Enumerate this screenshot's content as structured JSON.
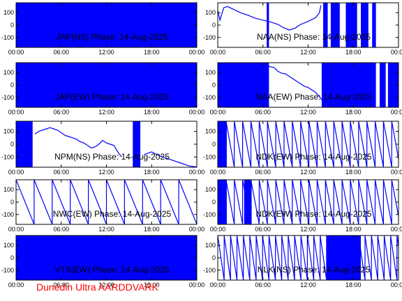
{
  "footer": {
    "label": "Dunedin Ultra AARDDVARK",
    "color": "#ff0000"
  },
  "colors": {
    "trace": "#0000ff",
    "axes": "#000000",
    "background": "#ffffff"
  },
  "chart_data": [
    {
      "type": "line",
      "title": "JAP(NS) Phase: 14-Aug-2025",
      "style": "dense",
      "ylim": [
        -180,
        180
      ],
      "yticks": [
        100,
        0,
        -100
      ],
      "xticks": [
        "00:00",
        "06:00",
        "12:00",
        "18:00",
        "00:00"
      ],
      "xlim": [
        0,
        24
      ],
      "gaps": []
    },
    {
      "type": "line",
      "title": "NAA(NS) Phase: 14-Aug-2025",
      "style": "mixed",
      "ylim": [
        -180,
        180
      ],
      "yticks": [
        100,
        0,
        -100
      ],
      "xticks": [
        "00:00",
        "06:00",
        "12:00",
        "18:00",
        "00:00"
      ],
      "xlim": [
        0,
        24
      ],
      "series": [
        {
          "x": [
            0,
            0.3,
            0.8,
            1.3,
            2,
            3,
            4,
            5,
            6,
            7,
            8,
            8.7,
            9.5,
            10,
            10.3,
            10.6,
            11,
            12,
            13,
            13.5,
            13.7
          ],
          "y": [
            120,
            40,
            140,
            150,
            130,
            100,
            80,
            55,
            40,
            25,
            5,
            -20,
            -40,
            -30,
            -25,
            -10,
            5,
            30,
            60,
            100,
            160
          ]
        }
      ],
      "dense": [
        [
          6.5,
          6.8
        ],
        [
          14,
          14.6
        ],
        [
          15,
          16.2
        ],
        [
          17,
          18.5
        ],
        [
          19,
          20
        ],
        [
          20.5,
          21
        ]
      ]
    },
    {
      "type": "line",
      "title": "JAP(EW) Phase: 14-Aug-2025",
      "style": "dense",
      "ylim": [
        -180,
        180
      ],
      "yticks": [
        100,
        0,
        -100
      ],
      "xticks": [
        "00:00",
        "06:00",
        "12:00",
        "18:00",
        "00:00"
      ],
      "xlim": [
        0,
        24
      ],
      "gaps": []
    },
    {
      "type": "line",
      "title": "NAA(EW) Phase: 14-Aug-2025",
      "style": "mixed",
      "ylim": [
        -180,
        180
      ],
      "yticks": [
        100,
        0,
        -100
      ],
      "xticks": [
        "00:00",
        "06:00",
        "12:00",
        "18:00",
        "00:00"
      ],
      "xlim": [
        0,
        24
      ],
      "series": [
        {
          "x": [
            6.8,
            7.5,
            8,
            8.5,
            9,
            9.5,
            10,
            10.5,
            11,
            11.5,
            12,
            12.5,
            13,
            13.3,
            13.6,
            13.8
          ],
          "y": [
            150,
            140,
            110,
            95,
            90,
            70,
            50,
            30,
            10,
            -10,
            -20,
            -40,
            -60,
            -80,
            -100,
            -120
          ]
        }
      ],
      "dense": [
        [
          0,
          6.8
        ],
        [
          13.8,
          21
        ],
        [
          21.5,
          22.3
        ],
        [
          22.6,
          24
        ]
      ]
    },
    {
      "type": "line",
      "title": "NPM(NS) Phase: 14-Aug-2025",
      "style": "mixed",
      "ylim": [
        -180,
        180
      ],
      "yticks": [
        100,
        0,
        -100
      ],
      "xticks": [
        "00:00",
        "06:00",
        "12:00",
        "18:00",
        "00:00"
      ],
      "xlim": [
        0,
        24
      ],
      "series": [
        {
          "x": [
            2.5,
            3,
            3.5,
            4,
            4.5,
            5,
            5.5,
            6,
            6.5,
            7,
            7.5,
            8,
            8.5,
            9,
            9.5,
            10,
            10.5,
            11,
            11.5,
            12,
            12.5,
            13,
            13.5,
            14
          ],
          "y": [
            80,
            100,
            110,
            120,
            130,
            120,
            110,
            90,
            70,
            60,
            50,
            40,
            20,
            10,
            -10,
            -30,
            -20,
            0,
            30,
            10,
            0,
            -10,
            -60,
            -100
          ]
        },
        {
          "x": [
            17,
            18,
            19,
            20,
            21,
            22,
            23,
            24
          ],
          "y": [
            -80,
            -60,
            -90,
            -110,
            -130,
            -150,
            -170,
            -178
          ]
        }
      ],
      "dense": [
        [
          0,
          2.2
        ],
        [
          15.5,
          16.5
        ]
      ]
    },
    {
      "type": "line",
      "title": "NDK(EW) Phase: 14-Aug-2025",
      "style": "sawtooth",
      "ylim": [
        -180,
        180
      ],
      "yticks": [
        100,
        0,
        -100
      ],
      "xticks": [
        "00:00",
        "06:00",
        "12:00",
        "18:00",
        "00:00"
      ],
      "xlim": [
        0,
        24
      ],
      "period_hours": 1.1,
      "dense": [
        [
          0,
          1.2
        ]
      ]
    },
    {
      "type": "line",
      "title": "NWC(EW) Phase: 14-Aug-2025",
      "style": "sawtooth",
      "ylim": [
        -180,
        180
      ],
      "yticks": [
        100,
        0,
        -100
      ],
      "xticks": [
        "00:00",
        "06:00",
        "12:00",
        "18:00",
        "00:00"
      ],
      "xlim": [
        0,
        24
      ],
      "period_hours": 2.4,
      "dense": []
    },
    {
      "type": "line",
      "title": "NDK(EW) Phase: 14-Aug-2025",
      "style": "sawtooth",
      "ylim": [
        -180,
        180
      ],
      "yticks": [
        100,
        0,
        -100
      ],
      "xticks": [
        "00:00",
        "06:00",
        "12:00",
        "18:00",
        "00:00"
      ],
      "xlim": [
        0,
        24
      ],
      "period_hours": 1.1,
      "dense": [
        [
          0,
          1.2
        ],
        [
          3.5,
          4.5
        ]
      ]
    },
    {
      "type": "line",
      "title": "VTX(EW) Phase: 14-Aug-2025",
      "style": "dense",
      "ylim": [
        -180,
        180
      ],
      "yticks": [
        100,
        0,
        -100
      ],
      "xticks": [
        "00:00",
        "06:00",
        "12:00",
        "18:00",
        "00:00"
      ],
      "xlim": [
        0,
        24
      ],
      "gaps": []
    },
    {
      "type": "line",
      "title": "NLK(NS) Phase: 14-Aug-2025",
      "style": "sawtooth",
      "ylim": [
        -180,
        180
      ],
      "yticks": [
        100,
        0,
        -100
      ],
      "xticks": [
        "00:00",
        "06:00",
        "12:00",
        "18:00",
        "00:00"
      ],
      "xlim": [
        0,
        24
      ],
      "period_hours": 0.85,
      "dense": [
        [
          14.5,
          19
        ]
      ]
    }
  ]
}
